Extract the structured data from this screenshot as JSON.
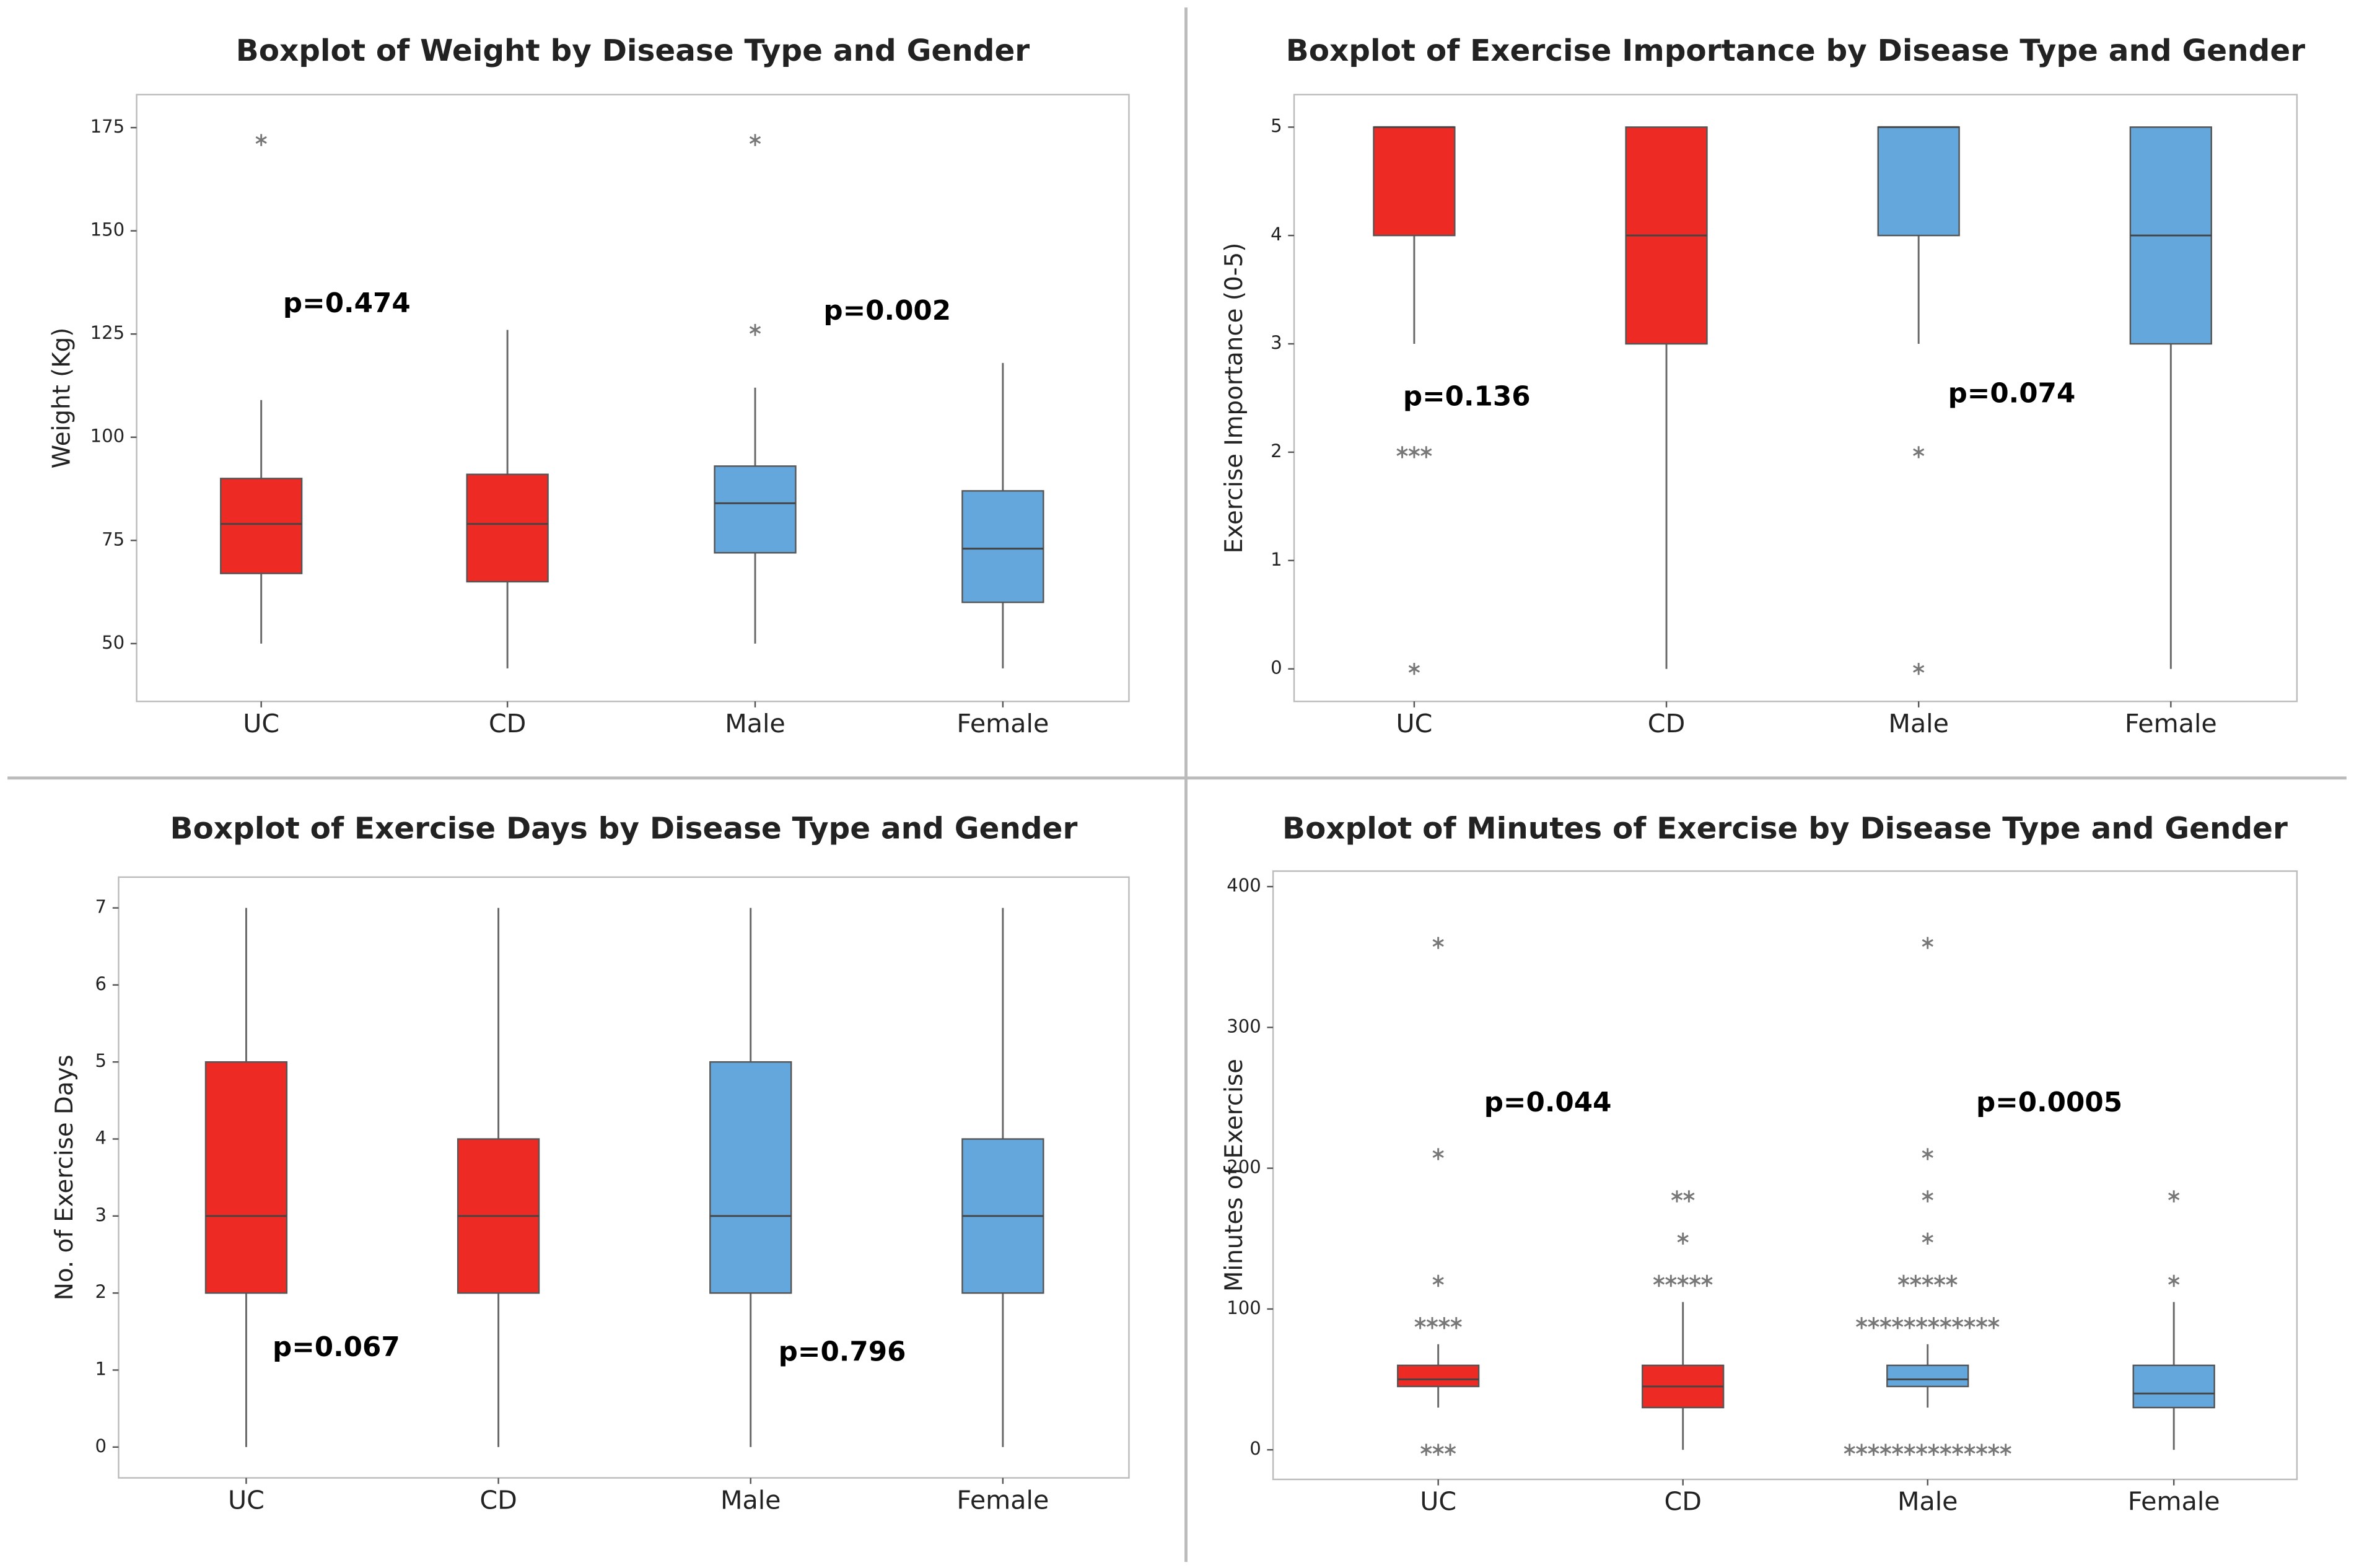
{
  "chart_data": [
    {
      "type": "box",
      "title": "Boxplot of Weight by Disease Type and Gender",
      "y_label": "Weight (Kg)",
      "categories": [
        "UC",
        "CD",
        "Male",
        "Female"
      ],
      "colors": [
        "#ee2a24",
        "#ee2a24",
        "#64a7dc",
        "#64a7dc"
      ],
      "boxes": [
        {
          "min": 50,
          "q1": 67,
          "median": 79,
          "q3": 90,
          "max": 109,
          "outliers": [
            172
          ]
        },
        {
          "min": 44,
          "q1": 65,
          "median": 79,
          "q3": 91,
          "max": 126,
          "outliers": []
        },
        {
          "min": 50,
          "q1": 72,
          "median": 84,
          "q3": 93,
          "max": 112,
          "outliers": [
            126,
            172
          ]
        },
        {
          "min": 44,
          "q1": 60,
          "median": 73,
          "q3": 87,
          "max": 118,
          "outliers": []
        }
      ],
      "ylim": [
        36,
        183
      ],
      "yticks": [
        50,
        75,
        100,
        125,
        150,
        175
      ],
      "annotations": [
        "p=0.474",
        "p=0.002"
      ]
    },
    {
      "type": "box",
      "title": "Boxplot of Exercise Importance by Disease Type and Gender",
      "y_label": "Exercise Importance (0-5)",
      "categories": [
        "UC",
        "CD",
        "Male",
        "Female"
      ],
      "colors": [
        "#ee2a24",
        "#ee2a24",
        "#64a7dc",
        "#64a7dc"
      ],
      "boxes": [
        {
          "min": 3,
          "q1": 4,
          "median": 5,
          "q3": 5,
          "max": 5,
          "outliers": [
            2,
            2,
            2,
            0
          ]
        },
        {
          "min": 0,
          "q1": 3,
          "median": 4,
          "q3": 5,
          "max": 5,
          "outliers": []
        },
        {
          "min": 3,
          "q1": 4,
          "median": 5,
          "q3": 5,
          "max": 5,
          "outliers": [
            2,
            0
          ]
        },
        {
          "min": 0,
          "q1": 3,
          "median": 4,
          "q3": 5,
          "max": 5,
          "outliers": []
        }
      ],
      "ylim": [
        -0.3,
        5.3
      ],
      "yticks": [
        0,
        1,
        2,
        3,
        4,
        5
      ],
      "annotations": [
        "p=0.136",
        "p=0.074"
      ]
    },
    {
      "type": "box",
      "title": "Boxplot of Exercise Days by Disease Type and Gender",
      "y_label": "No. of Exercise Days",
      "categories": [
        "UC",
        "CD",
        "Male",
        "Female"
      ],
      "colors": [
        "#ee2a24",
        "#ee2a24",
        "#64a7dc",
        "#64a7dc"
      ],
      "boxes": [
        {
          "min": 0,
          "q1": 2,
          "median": 3,
          "q3": 5,
          "max": 7,
          "outliers": []
        },
        {
          "min": 0,
          "q1": 2,
          "median": 3,
          "q3": 4,
          "max": 7,
          "outliers": []
        },
        {
          "min": 0,
          "q1": 2,
          "median": 3,
          "q3": 5,
          "max": 7,
          "outliers": []
        },
        {
          "min": 0,
          "q1": 2,
          "median": 3,
          "q3": 4,
          "max": 7,
          "outliers": []
        }
      ],
      "ylim": [
        -0.4,
        7.4
      ],
      "yticks": [
        0,
        1,
        2,
        3,
        4,
        5,
        6,
        7
      ],
      "annotations": [
        "p=0.067",
        "p=0.796"
      ]
    },
    {
      "type": "box",
      "title": "Boxplot of Minutes of Exercise by Disease Type and Gender",
      "y_label": "Minutes of Exercise",
      "categories": [
        "UC",
        "CD",
        "Male",
        "Female"
      ],
      "colors": [
        "#ee2a24",
        "#ee2a24",
        "#64a7dc",
        "#64a7dc"
      ],
      "boxes": [
        {
          "min": 30,
          "q1": 45,
          "median": 50,
          "q3": 60,
          "max": 75,
          "outliers": [
            360,
            210,
            120,
            90,
            90,
            90,
            90,
            0,
            0,
            0
          ]
        },
        {
          "min": 0,
          "q1": 30,
          "median": 45,
          "q3": 60,
          "max": 105,
          "outliers": [
            180,
            180,
            150,
            120,
            120,
            120,
            120,
            120
          ]
        },
        {
          "min": 30,
          "q1": 45,
          "median": 50,
          "q3": 60,
          "max": 75,
          "outliers": [
            360,
            210,
            180,
            150,
            120,
            120,
            120,
            120,
            120,
            90,
            90,
            90,
            90,
            90,
            90,
            90,
            90,
            90,
            90,
            90,
            90,
            0,
            0,
            0,
            0,
            0,
            0,
            0,
            0,
            0,
            0,
            0,
            0,
            0,
            0
          ]
        },
        {
          "min": 0,
          "q1": 30,
          "median": 40,
          "q3": 60,
          "max": 105,
          "outliers": [
            180,
            120
          ]
        }
      ],
      "ylim": [
        -21,
        411
      ],
      "yticks": [
        0,
        100,
        200,
        300,
        400
      ],
      "annotations": [
        "p=0.044",
        "p=0.0005"
      ]
    }
  ]
}
